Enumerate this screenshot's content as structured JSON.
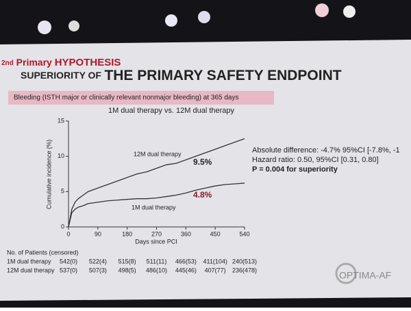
{
  "header": {
    "ordinal": "2nd",
    "line1_a": "Primary",
    "line1_b": "HYPOTHESIS",
    "line2_a": "SUPERIORITY OF",
    "line2_b": "THE PRIMARY SAFETY ENDPOINT"
  },
  "banner": "Bleeding (ISTH major or clinically relevant nonmajor bleeding) at 365 days",
  "chart_data": {
    "type": "line",
    "title": "1M dual therapy vs. 12M dual therapy",
    "xlabel": "Days since PCI",
    "ylabel": "Cumulative incidence (%)",
    "xlim": [
      0,
      540
    ],
    "ylim": [
      0,
      15
    ],
    "xticks": [
      0,
      90,
      180,
      270,
      360,
      450,
      540
    ],
    "yticks": [
      0,
      5,
      10,
      15
    ],
    "x": [
      0,
      10,
      20,
      30,
      45,
      60,
      90,
      120,
      150,
      180,
      210,
      240,
      270,
      300,
      330,
      360,
      390,
      420,
      450,
      480,
      510,
      540
    ],
    "series": [
      {
        "name": "12M dual therapy",
        "color": "#333333",
        "values": [
          0,
          2.5,
          3.5,
          4,
          4.5,
          5,
          5.5,
          6,
          6.5,
          7,
          7.5,
          7.8,
          8.3,
          8.8,
          9,
          9.5,
          10,
          10.5,
          11,
          11.5,
          12,
          12.5
        ]
      },
      {
        "name": "1M dual therapy",
        "color": "#333333",
        "values": [
          0,
          2,
          2.5,
          2.8,
          3,
          3.3,
          3.5,
          3.7,
          3.8,
          3.9,
          4,
          4,
          4.1,
          4.3,
          4.5,
          4.8,
          5.2,
          5.5,
          5.8,
          6,
          6.1,
          6.2
        ]
      }
    ],
    "annotations": [
      "9.5%",
      "4.8%"
    ]
  },
  "stats": [
    "Absolute difference: -4.7% 95%CI [-7.8%, -1",
    "Hazard ratio: 0.50, 95%CI [0.31, 0.80]",
    "P = 0.004 for superiority"
  ],
  "risk_table": {
    "title": "No. of Patients (censored)",
    "rows": [
      {
        "label": "1M dual therapy",
        "cells": [
          "542(0)",
          "522(4)",
          "515(8)",
          "511(11)",
          "466(53)",
          "411(104)",
          "240(513)"
        ]
      },
      {
        "label": "12M dual therapy",
        "cells": [
          "537(0)",
          "507(3)",
          "498(5)",
          "486(10)",
          "445(46)",
          "407(77)",
          "236(478)"
        ]
      }
    ]
  },
  "logo": "OPTIMA-AF"
}
